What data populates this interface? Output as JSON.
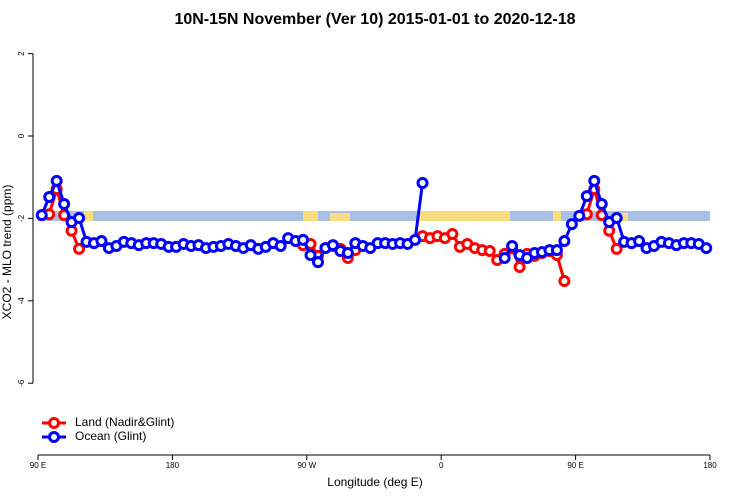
{
  "chart_data": {
    "type": "line",
    "title": "10N-15N November (Ver 10)   2015-01-01 to 2020-12-18",
    "x_label": "Longitude (deg E)",
    "y_label": "XCO2 - MLO trend (ppm)",
    "xlim": [
      90,
      540
    ],
    "xticks": [
      {
        "value": 90,
        "label": "90 E"
      },
      180,
      {
        "value": 270,
        "label": "90 W"
      },
      {
        "value": 360,
        "label": "0"
      },
      {
        "value": 450,
        "label": "90 E"
      },
      {
        "value": 540,
        "label": "180"
      }
    ],
    "ylim": [
      -7.5,
      2.5
    ],
    "yticks": [
      -6,
      -4,
      -2,
      0,
      2
    ],
    "legend": "bottom-left",
    "x": [
      92.5,
      97.5,
      102.5,
      107.5,
      112.5,
      117.5,
      122.5,
      127.5,
      132.5,
      137.5,
      142.5,
      147.5,
      152.5,
      157.5,
      162.5,
      167.5,
      172.5,
      177.5,
      182.5,
      187.5,
      192.5,
      197.5,
      202.5,
      207.5,
      212.5,
      217.5,
      222.5,
      227.5,
      232.5,
      237.5,
      242.5,
      247.5,
      252.5,
      257.5,
      262.5,
      267.5,
      272.5,
      277.5,
      282.5,
      287.5,
      292.5,
      297.5,
      302.5,
      307.5,
      312.5,
      317.5,
      322.5,
      327.5,
      332.5,
      337.5,
      342.5,
      347.5,
      352.5,
      357.5,
      362.5,
      367.5,
      372.5,
      377.5,
      382.5,
      387.5,
      392.5,
      397.5,
      402.5,
      407.5,
      412.5,
      417.5,
      422.5,
      427.5,
      432.5,
      437.5,
      442.5,
      447.5,
      452.5,
      457.5,
      462.5,
      467.5,
      472.5,
      477.5,
      482.5,
      487.5,
      492.5,
      497.5,
      502.5,
      507.5,
      512.5,
      517.5,
      522.5,
      527.5,
      532.5,
      537.5
    ],
    "series": [
      {
        "name": "Land (Nadir&Glint)",
        "color": "#ff0000",
        "values": [
          null,
          -1.9,
          -1.29,
          -1.92,
          -2.3,
          -2.74,
          null,
          null,
          null,
          null,
          null,
          null,
          null,
          null,
          null,
          null,
          null,
          null,
          null,
          null,
          null,
          null,
          null,
          null,
          null,
          null,
          null,
          null,
          null,
          null,
          null,
          null,
          null,
          null,
          null,
          -2.65,
          -2.62,
          -2.91,
          -2.72,
          -2.67,
          -2.74,
          -2.96,
          -2.77,
          null,
          null,
          null,
          null,
          null,
          null,
          null,
          null,
          -2.43,
          -2.48,
          -2.43,
          -2.48,
          -2.38,
          -2.69,
          -2.62,
          -2.72,
          -2.77,
          -2.79,
          -3.01,
          -2.86,
          -2.72,
          -3.18,
          -2.86,
          -2.91,
          -2.84,
          -2.79,
          -2.89,
          -3.52,
          null,
          null,
          -1.9,
          -1.29,
          -1.92,
          -2.3,
          -2.74,
          null,
          null,
          null,
          null,
          null,
          null,
          null,
          null,
          null,
          null,
          null,
          null
        ]
      },
      {
        "name": "Ocean (Glint)",
        "color": "#0000ff",
        "values": [
          -1.92,
          -1.48,
          -1.09,
          -1.65,
          -2.09,
          -1.99,
          -2.57,
          -2.6,
          -2.55,
          -2.72,
          -2.67,
          -2.57,
          -2.6,
          -2.65,
          -2.6,
          -2.6,
          -2.62,
          -2.69,
          -2.69,
          -2.62,
          -2.67,
          -2.65,
          -2.72,
          -2.69,
          -2.67,
          -2.62,
          -2.67,
          -2.72,
          -2.65,
          -2.74,
          -2.69,
          -2.6,
          -2.67,
          -2.48,
          -2.55,
          -2.52,
          -2.89,
          -3.06,
          -2.72,
          -2.65,
          -2.79,
          -2.84,
          -2.6,
          -2.67,
          -2.72,
          -2.6,
          -2.6,
          -2.62,
          -2.6,
          -2.62,
          -2.52,
          -1.14,
          null,
          null,
          null,
          null,
          null,
          null,
          null,
          null,
          null,
          null,
          -2.96,
          -2.67,
          -2.89,
          -2.96,
          -2.84,
          -2.82,
          -2.77,
          -2.77,
          -2.55,
          -2.14,
          -1.94,
          -1.46,
          -1.09,
          -1.65,
          -2.09,
          -1.99,
          -2.57,
          -2.6,
          -2.55,
          -2.72,
          -2.67,
          -2.57,
          -2.6,
          -2.65,
          -2.6,
          -2.6,
          -2.62,
          -2.72
        ]
      }
    ]
  }
}
